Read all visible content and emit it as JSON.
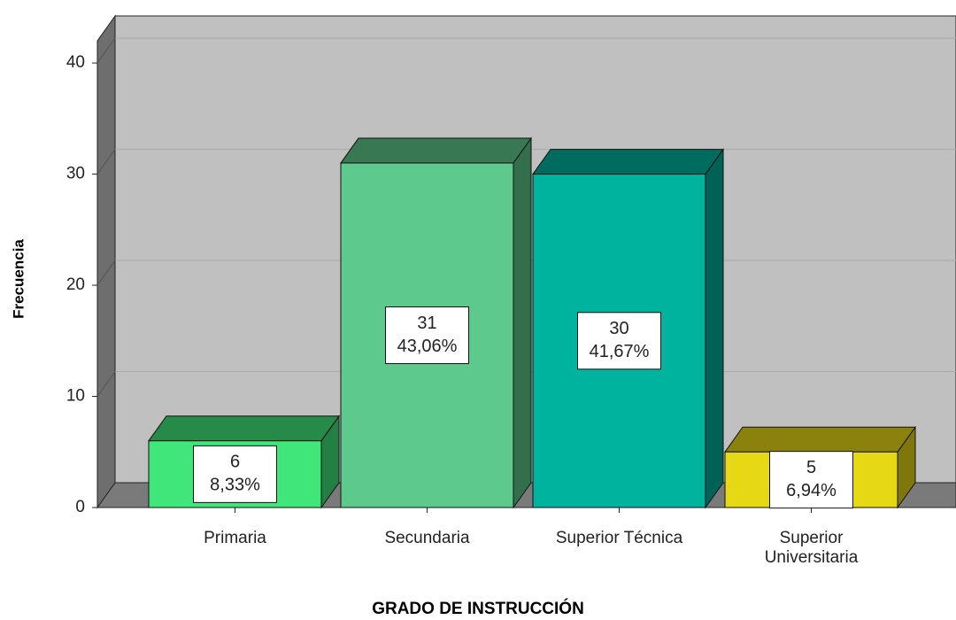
{
  "chart_data": {
    "type": "bar3d",
    "x_label": "GRADO DE INSTRUCCIÓN",
    "y_label": "Frecuencia",
    "categories": [
      "Primaria",
      "Secundaria",
      "Superior Técnica",
      "Superior Universitaria"
    ],
    "values": [
      6,
      31,
      30,
      5
    ],
    "percentages": [
      8.33,
      43.06,
      41.67,
      6.94
    ],
    "percentage_labels": [
      "8,33%",
      "43,06%",
      "41,67%",
      "6,94%"
    ],
    "colors": [
      "#40e67a",
      "#5ec98c",
      "#00b39f",
      "#e6d814"
    ],
    "ylim": [
      0,
      42
    ],
    "yticks": [
      0,
      10,
      20,
      30,
      40
    ],
    "grid": true
  }
}
